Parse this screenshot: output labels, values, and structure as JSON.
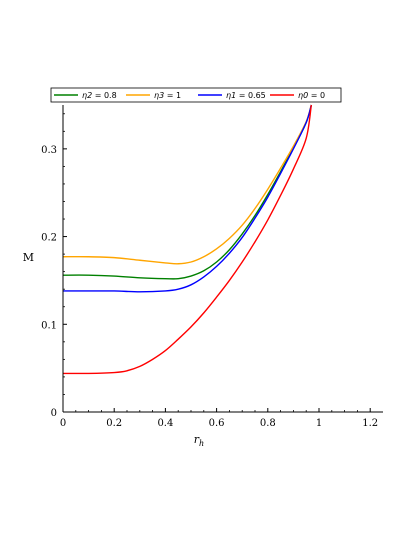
{
  "chart_data": {
    "type": "line",
    "xlabel": "r",
    "xlabel_sub": "h",
    "ylabel": "M",
    "xlim": [
      0,
      1.25
    ],
    "ylim": [
      0,
      0.35
    ],
    "x_ticks": [
      "0",
      "0.2",
      "0.4",
      "0.6",
      "0.8",
      "1",
      "1.2"
    ],
    "x_tick_values": [
      0,
      0.2,
      0.4,
      0.6,
      0.8,
      1.0,
      1.2
    ],
    "y_ticks": [
      "0",
      "0.1",
      "0.2",
      "0.3"
    ],
    "y_tick_values": [
      0,
      0.1,
      0.2,
      0.3
    ],
    "legend_position": "top",
    "series": [
      {
        "name": "η2 = 0.8",
        "greek": "η",
        "sub": "2",
        "value_text": " = 0.8",
        "color": "#008000",
        "x": [
          0,
          0.1,
          0.2,
          0.3,
          0.4,
          0.45,
          0.5,
          0.55,
          0.6,
          0.65,
          0.7,
          0.75,
          0.8,
          0.85,
          0.9,
          0.95,
          0.97
        ],
        "y": [
          0.156,
          0.156,
          0.155,
          0.153,
          0.152,
          0.152,
          0.155,
          0.161,
          0.171,
          0.185,
          0.203,
          0.224,
          0.248,
          0.274,
          0.301,
          0.33,
          0.35
        ]
      },
      {
        "name": "η3 = 1",
        "greek": "η",
        "sub": "3",
        "value_text": " = 1",
        "color": "#FFA500",
        "x": [
          0,
          0.1,
          0.2,
          0.3,
          0.4,
          0.45,
          0.5,
          0.55,
          0.6,
          0.65,
          0.7,
          0.75,
          0.8,
          0.85,
          0.9,
          0.95,
          0.97
        ],
        "y": [
          0.177,
          0.177,
          0.176,
          0.173,
          0.17,
          0.169,
          0.171,
          0.177,
          0.186,
          0.198,
          0.213,
          0.232,
          0.254,
          0.278,
          0.303,
          0.331,
          0.35
        ]
      },
      {
        "name": "η1 = 0.65",
        "greek": "η",
        "sub": "1",
        "value_text": " = 0.65",
        "color": "#0000FF",
        "x": [
          0,
          0.1,
          0.2,
          0.3,
          0.4,
          0.45,
          0.5,
          0.55,
          0.6,
          0.65,
          0.7,
          0.75,
          0.8,
          0.85,
          0.9,
          0.95,
          0.97
        ],
        "y": [
          0.138,
          0.138,
          0.138,
          0.137,
          0.138,
          0.14,
          0.145,
          0.154,
          0.166,
          0.181,
          0.199,
          0.221,
          0.245,
          0.272,
          0.3,
          0.33,
          0.35
        ]
      },
      {
        "name": "η0 = 0",
        "greek": "η",
        "sub": "0",
        "value_text": " = 0",
        "color": "#FF0000",
        "x": [
          0,
          0.1,
          0.2,
          0.25,
          0.3,
          0.35,
          0.4,
          0.45,
          0.5,
          0.55,
          0.6,
          0.65,
          0.7,
          0.75,
          0.8,
          0.85,
          0.9,
          0.95,
          0.97
        ],
        "y": [
          0.044,
          0.044,
          0.045,
          0.047,
          0.052,
          0.06,
          0.07,
          0.083,
          0.097,
          0.113,
          0.131,
          0.15,
          0.171,
          0.194,
          0.219,
          0.247,
          0.277,
          0.312,
          0.35
        ]
      }
    ]
  }
}
